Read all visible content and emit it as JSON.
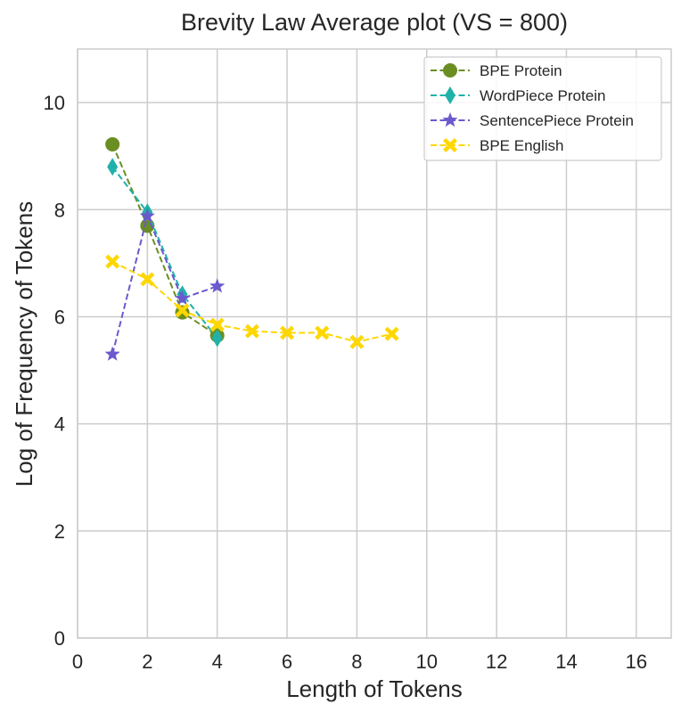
{
  "chart_data": {
    "type": "line",
    "title": "Brevity Law Average plot (VS = 800)",
    "xlabel": "Length of Tokens",
    "ylabel": "Log of Frequency of Tokens",
    "xlim": [
      0,
      17
    ],
    "ylim": [
      0,
      11
    ],
    "xticks": [
      0,
      2,
      4,
      6,
      8,
      10,
      12,
      14,
      16
    ],
    "yticks": [
      0,
      2,
      4,
      6,
      8,
      10
    ],
    "xtick_labels": [
      "0",
      "2",
      "4",
      "6",
      "8",
      "10",
      "12",
      "14",
      "16"
    ],
    "ytick_labels": [
      "0",
      "2",
      "4",
      "6",
      "8",
      "10"
    ],
    "grid": true,
    "legend_position": "top-right",
    "series": [
      {
        "name": "BPE Protein",
        "color": "#6b8e23",
        "marker": "circle",
        "x": [
          1,
          2,
          3,
          4
        ],
        "y": [
          9.22,
          7.7,
          6.08,
          5.65
        ]
      },
      {
        "name": "WordPiece Protein",
        "color": "#20b2aa",
        "marker": "thin-diamond",
        "x": [
          1,
          2,
          3,
          4
        ],
        "y": [
          8.8,
          7.95,
          6.42,
          5.6
        ]
      },
      {
        "name": "SentencePiece Protein",
        "color": "#6a5acd",
        "marker": "star",
        "x": [
          1,
          2,
          3,
          4
        ],
        "y": [
          5.3,
          7.88,
          6.34,
          6.57
        ]
      },
      {
        "name": "BPE English",
        "color": "#ffd700",
        "marker": "x-filled",
        "x": [
          1,
          2,
          3,
          4,
          5,
          6,
          7,
          8,
          9
        ],
        "y": [
          7.03,
          6.7,
          6.12,
          5.85,
          5.73,
          5.7,
          5.7,
          5.53,
          5.68
        ]
      }
    ]
  }
}
